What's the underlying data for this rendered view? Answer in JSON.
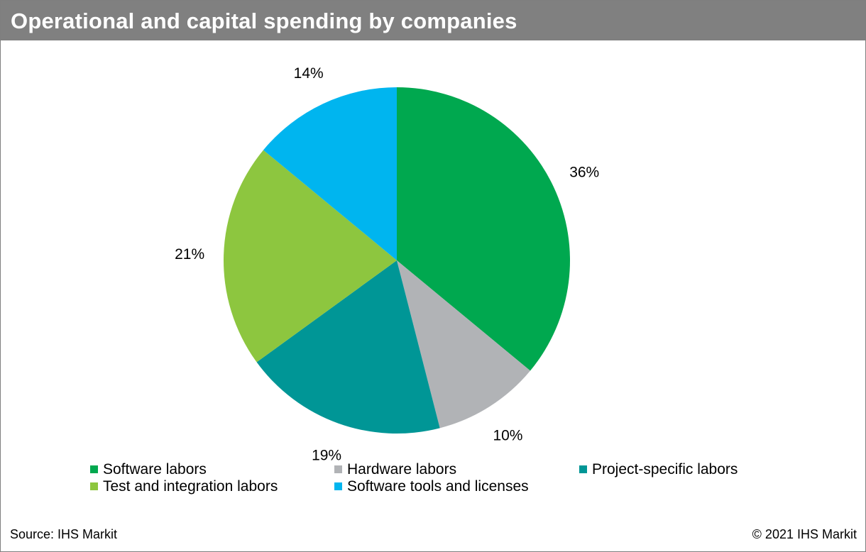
{
  "header": {
    "title": "Operational and capital spending by companies"
  },
  "footer": {
    "source": "Source: IHS Markit",
    "copyright": "© 2021 IHS Markit"
  },
  "chart_data": {
    "type": "pie",
    "title": "Operational and capital spending by companies",
    "start_angle_deg": 0,
    "direction": "clockwise",
    "legend_position": "bottom",
    "slices": [
      {
        "name": "Software labors",
        "value": 36,
        "label": "36%",
        "color": "#00A84F"
      },
      {
        "name": "Hardware labors",
        "value": 10,
        "label": "10%",
        "color": "#B1B3B6"
      },
      {
        "name": "Project-specific labors",
        "value": 19,
        "label": "19%",
        "color": "#009696"
      },
      {
        "name": "Test and integration labors",
        "value": 21,
        "label": "21%",
        "color": "#8DC63F"
      },
      {
        "name": "Software tools and licenses",
        "value": 14,
        "label": "14%",
        "color": "#00B5EF"
      }
    ]
  }
}
